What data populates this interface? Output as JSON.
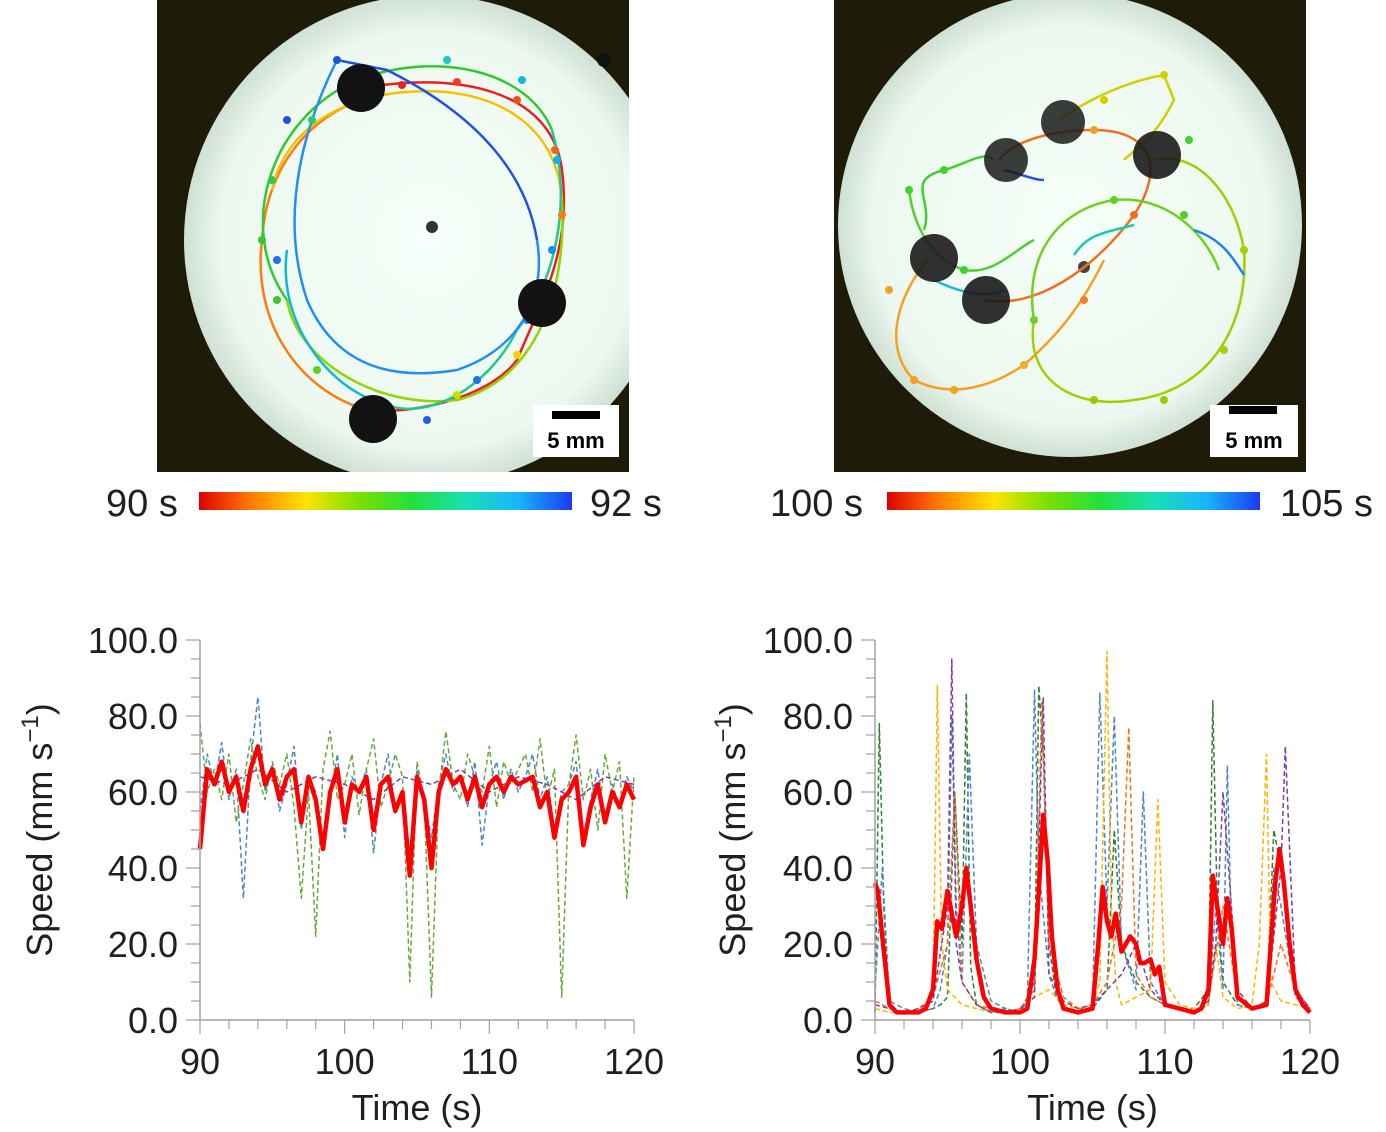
{
  "top_panels": {
    "left": {
      "scale_bar_label": "5 mm",
      "colorbar": {
        "min_label": "90 s",
        "max_label": "92 s",
        "colors": [
          "#e00000",
          "#ff7f00",
          "#ffe400",
          "#7be000",
          "#22e03c",
          "#18e0b4",
          "#18b4ff",
          "#1a3cf0"
        ]
      }
    },
    "right": {
      "scale_bar_label": "5 mm",
      "colorbar": {
        "min_label": "100 s",
        "max_label": "105 s",
        "colors": [
          "#e00000",
          "#ff7f00",
          "#ffe400",
          "#7be000",
          "#22e03c",
          "#18e0b4",
          "#18b4ff",
          "#1a3cf0"
        ]
      }
    }
  },
  "chart_data": [
    {
      "type": "line",
      "xlabel": "Time (s)",
      "ylabel": "Speed (mm s",
      "ylabel_sup": "−1",
      "ylabel_close": ")",
      "xlim": [
        90,
        120
      ],
      "ylim": [
        0,
        100
      ],
      "xticks": [
        "90",
        "100",
        "110",
        "120"
      ],
      "yticks": [
        "0.0",
        "20.0",
        "40.0",
        "60.0",
        "80.0",
        "100.0"
      ],
      "series": [
        {
          "color": "#4a86c8",
          "dashed": true,
          "x": [
            90,
            90.5,
            91,
            91.5,
            92,
            92.5,
            93,
            93.5,
            94,
            94.5,
            95,
            95.5,
            96,
            96.5,
            97,
            97.5,
            98,
            98.5,
            99,
            99.5,
            100,
            100.5,
            101,
            101.5,
            102,
            102.5,
            103,
            103.5,
            104,
            104.5,
            105,
            105.5,
            106,
            106.5,
            107,
            107.5,
            108,
            108.5,
            109,
            109.5,
            110,
            110.5,
            111,
            111.5,
            112,
            112.5,
            113,
            113.5,
            114,
            114.5,
            115,
            115.5,
            116,
            116.5,
            117,
            117.5,
            118,
            118.5,
            119,
            119.5,
            120
          ],
          "y": [
            55,
            70,
            62,
            73,
            58,
            66,
            32,
            68,
            85,
            60,
            67,
            55,
            62,
            72,
            50,
            64,
            60,
            46,
            58,
            70,
            48,
            64,
            60,
            66,
            44,
            62,
            70,
            54,
            60,
            42,
            66,
            58,
            48,
            62,
            70,
            60,
            64,
            56,
            68,
            46,
            62,
            68,
            58,
            66,
            60,
            64,
            70,
            58,
            64,
            50,
            60,
            62,
            68,
            48,
            58,
            66,
            52,
            62,
            56,
            64,
            60
          ]
        },
        {
          "color": "#6aa63e",
          "dashed": true,
          "x": [
            90,
            90.5,
            91,
            91.5,
            92,
            92.5,
            93,
            93.5,
            94,
            94.5,
            95,
            95.5,
            96,
            96.5,
            97,
            97.5,
            98,
            98.5,
            99,
            99.5,
            100,
            100.5,
            101,
            101.5,
            102,
            102.5,
            103,
            103.5,
            104,
            104.5,
            105,
            105.5,
            106,
            106.5,
            107,
            107.5,
            108,
            108.5,
            109,
            109.5,
            110,
            110.5,
            111,
            111.5,
            112,
            112.5,
            113,
            113.5,
            114,
            114.5,
            115,
            115.5,
            116,
            116.5,
            117,
            117.5,
            118,
            118.5,
            119,
            119.5,
            120
          ],
          "y": [
            78,
            60,
            66,
            58,
            70,
            52,
            62,
            74,
            64,
            58,
            68,
            62,
            70,
            56,
            32,
            60,
            22,
            66,
            76,
            58,
            62,
            70,
            54,
            66,
            74,
            56,
            62,
            70,
            64,
            10,
            68,
            58,
            6,
            60,
            76,
            62,
            58,
            70,
            64,
            60,
            72,
            56,
            68,
            62,
            66,
            70,
            60,
            74,
            58,
            66,
            6,
            62,
            75,
            58,
            66,
            50,
            70,
            60,
            68,
            32,
            64
          ]
        },
        {
          "color": "#7b3fa0",
          "dashed": true,
          "x": [
            90,
            92,
            94,
            96,
            98,
            100,
            102,
            104,
            106,
            108,
            110,
            112,
            114,
            116,
            118,
            120
          ],
          "y": [
            64,
            62,
            66,
            60,
            64,
            62,
            58,
            64,
            62,
            66,
            60,
            64,
            62,
            58,
            64,
            62
          ]
        },
        {
          "color": "#ff0000",
          "dashed": false,
          "bold": true,
          "x": [
            90,
            90.5,
            91,
            91.5,
            92,
            92.5,
            93,
            93.5,
            94,
            94.5,
            95,
            95.5,
            96,
            96.5,
            97,
            97.5,
            98,
            98.5,
            99,
            99.5,
            100,
            100.5,
            101,
            101.5,
            102,
            102.5,
            103,
            103.5,
            104,
            104.5,
            105,
            105.5,
            106,
            106.5,
            107,
            107.5,
            108,
            108.5,
            109,
            109.5,
            110,
            110.5,
            111,
            111.5,
            112,
            112.5,
            113,
            113.5,
            114,
            114.5,
            115,
            115.5,
            116,
            116.5,
            117,
            117.5,
            118,
            118.5,
            119,
            119.5,
            120
          ],
          "y": [
            45,
            66,
            62,
            68,
            60,
            64,
            55,
            66,
            72,
            62,
            66,
            58,
            64,
            66,
            52,
            64,
            58,
            45,
            60,
            66,
            52,
            62,
            60,
            64,
            50,
            62,
            64,
            55,
            60,
            38,
            64,
            58,
            40,
            60,
            66,
            62,
            64,
            58,
            64,
            56,
            62,
            64,
            60,
            64,
            62,
            63,
            64,
            56,
            60,
            48,
            58,
            60,
            64,
            46,
            56,
            62,
            52,
            60,
            56,
            62,
            58
          ]
        }
      ]
    },
    {
      "type": "line",
      "xlabel": "Time (s)",
      "ylabel": "Speed (mm s",
      "ylabel_sup": "−1",
      "ylabel_close": ")",
      "xlim": [
        90,
        120
      ],
      "ylim": [
        0,
        100
      ],
      "xticks": [
        "90",
        "100",
        "110",
        "120"
      ],
      "yticks": [
        "0.0",
        "20.0",
        "40.0",
        "60.0",
        "80.0",
        "100.0"
      ],
      "series": [
        {
          "color": "#2e7d32",
          "dashed": true,
          "x": [
            90,
            90.3,
            90.6,
            91,
            92,
            93,
            94,
            94.5,
            95,
            95.5,
            96,
            96.3,
            96.6,
            97,
            98,
            99,
            100,
            101,
            101.3,
            101.6,
            102,
            102.5,
            103,
            104,
            105,
            106,
            106.5,
            107,
            108,
            109,
            110,
            111,
            112,
            113,
            113.3,
            113.6,
            114,
            115,
            116,
            117,
            117.5,
            118,
            119,
            120
          ],
          "y": [
            2,
            78,
            30,
            3,
            2,
            2,
            3,
            4,
            6,
            60,
            20,
            86,
            14,
            4,
            2,
            3,
            2,
            10,
            88,
            70,
            20,
            6,
            4,
            3,
            3,
            8,
            50,
            20,
            10,
            6,
            4,
            3,
            3,
            8,
            84,
            30,
            10,
            4,
            3,
            4,
            50,
            40,
            6,
            3
          ]
        },
        {
          "color": "#4a86c8",
          "dashed": true,
          "x": [
            90,
            90.5,
            91,
            92,
            93,
            94,
            94.5,
            95,
            95.3,
            95.6,
            96,
            96.5,
            97,
            98,
            99,
            100,
            100.5,
            101,
            101.3,
            102,
            102.5,
            103,
            104,
            105,
            105.5,
            106,
            106.5,
            107,
            108,
            108.5,
            109,
            110,
            111,
            112,
            113,
            113.5,
            114,
            114.3,
            114.6,
            115,
            116,
            117,
            117.5,
            118,
            119,
            120
          ],
          "y": [
            8,
            40,
            5,
            3,
            2,
            3,
            8,
            20,
            80,
            30,
            10,
            70,
            20,
            5,
            3,
            2,
            5,
            87,
            40,
            12,
            6,
            3,
            2,
            3,
            86,
            30,
            80,
            20,
            8,
            60,
            10,
            4,
            3,
            2,
            4,
            30,
            8,
            67,
            20,
            4,
            3,
            5,
            40,
            30,
            6,
            3
          ]
        },
        {
          "color": "#ffb300",
          "dashed": true,
          "x": [
            90,
            91,
            92,
            93,
            94,
            94.3,
            94.6,
            95,
            96,
            97,
            98,
            99,
            100,
            101,
            102,
            103,
            104,
            105,
            105.5,
            106,
            106.3,
            106.6,
            107,
            108,
            109,
            109.5,
            110,
            111,
            112,
            113,
            113.5,
            114,
            115,
            116,
            116.5,
            117,
            117.3,
            118,
            119,
            120
          ],
          "y": [
            3,
            2,
            2,
            3,
            5,
            88,
            20,
            8,
            4,
            3,
            2,
            2,
            3,
            6,
            8,
            4,
            3,
            4,
            10,
            97,
            30,
            10,
            4,
            6,
            8,
            58,
            10,
            4,
            3,
            4,
            20,
            6,
            3,
            4,
            20,
            70,
            10,
            5,
            4,
            3
          ]
        },
        {
          "color": "#f07020",
          "dashed": true,
          "x": [
            90,
            91,
            92,
            93,
            94,
            95,
            95.5,
            96,
            97,
            98,
            99,
            100,
            101,
            101.5,
            102,
            103,
            104,
            105,
            106,
            107,
            107.5,
            108,
            109,
            110,
            111,
            112,
            113,
            114,
            115,
            116,
            117,
            118,
            119,
            120
          ],
          "y": [
            5,
            3,
            2,
            3,
            6,
            20,
            60,
            10,
            4,
            3,
            2,
            3,
            8,
            84,
            20,
            6,
            3,
            4,
            10,
            30,
            77,
            12,
            6,
            4,
            3,
            2,
            5,
            30,
            6,
            3,
            4,
            20,
            8,
            3
          ]
        },
        {
          "color": "#7b3fa0",
          "dashed": true,
          "x": [
            90,
            91,
            92,
            93,
            94,
            95,
            95.3,
            95.6,
            96,
            97,
            98,
            99,
            100,
            101,
            101.6,
            102,
            103,
            104,
            105,
            106,
            107,
            108,
            109,
            110,
            111,
            112,
            113,
            113.5,
            114,
            115,
            116,
            117,
            118,
            118.3,
            119,
            120
          ],
          "y": [
            4,
            3,
            2,
            3,
            5,
            30,
            95,
            20,
            10,
            4,
            2,
            2,
            3,
            6,
            85,
            12,
            5,
            3,
            4,
            8,
            12,
            20,
            8,
            4,
            3,
            2,
            5,
            20,
            60,
            8,
            3,
            4,
            40,
            72,
            8,
            3
          ]
        },
        {
          "color": "#ff0000",
          "dashed": false,
          "bold": true,
          "x": [
            90,
            90.2,
            90.5,
            91,
            91.5,
            92,
            93,
            93.5,
            94,
            94.3,
            94.6,
            95,
            95.3,
            95.6,
            96,
            96.3,
            96.6,
            97,
            97.5,
            98,
            99,
            100,
            100.5,
            101,
            101.3,
            101.6,
            101.9,
            102.2,
            102.6,
            103,
            104,
            105,
            105.4,
            105.7,
            106,
            106.3,
            106.6,
            107,
            107.3,
            107.6,
            108,
            108.3,
            108.6,
            109,
            109.3,
            109.6,
            110,
            111,
            112,
            112.5,
            113,
            113.3,
            113.6,
            114,
            114.3,
            114.6,
            115,
            116,
            117,
            117.3,
            117.6,
            117.9,
            118.2,
            118.6,
            119,
            119.5,
            120
          ],
          "y": [
            36,
            34,
            22,
            4,
            2,
            2,
            2,
            3,
            8,
            26,
            24,
            34,
            28,
            22,
            30,
            40,
            30,
            16,
            6,
            3,
            2,
            2,
            3,
            16,
            34,
            54,
            42,
            22,
            8,
            3,
            2,
            3,
            20,
            35,
            26,
            22,
            28,
            18,
            20,
            22,
            20,
            15,
            15,
            16,
            12,
            14,
            4,
            3,
            2,
            3,
            8,
            38,
            30,
            20,
            32,
            24,
            6,
            3,
            4,
            20,
            36,
            45,
            36,
            20,
            8,
            4,
            2
          ]
        }
      ]
    }
  ]
}
